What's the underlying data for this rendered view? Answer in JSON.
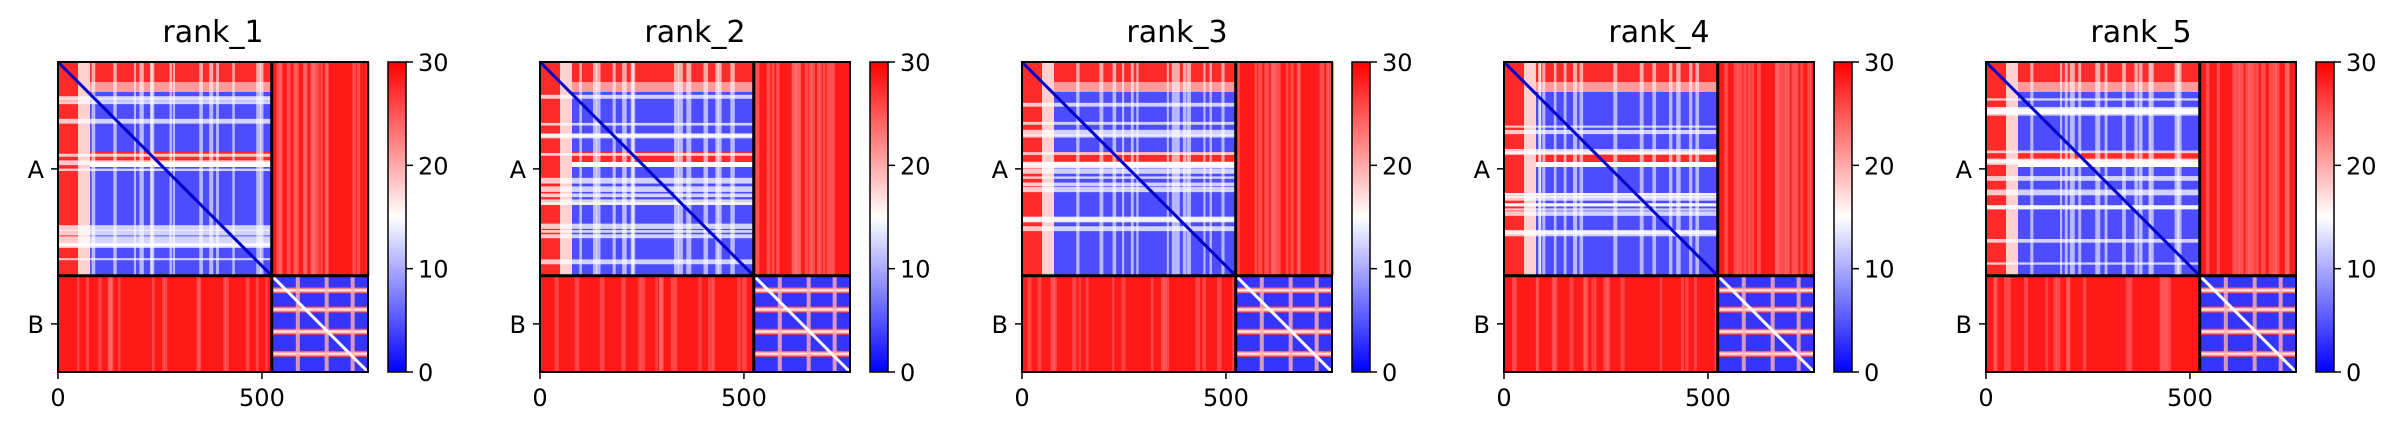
{
  "chart_data": [
    {
      "type": "heatmap",
      "title": "rank_1",
      "xlabel": "",
      "ylabel": "",
      "x_ticks": [
        "0",
        "500"
      ],
      "y_tick_labels": [
        "A",
        "B"
      ],
      "colorbar": {
        "ticks": [
          "0",
          "10",
          "20",
          "30"
        ],
        "range": [
          0,
          30
        ],
        "colors": [
          "#0000ff",
          "#ffffff",
          "#ff0000"
        ]
      },
      "chains": [
        {
          "name": "A",
          "length": 524
        },
        {
          "name": "B",
          "length": 236
        }
      ]
    },
    {
      "type": "heatmap",
      "title": "rank_2",
      "xlabel": "",
      "ylabel": "",
      "x_ticks": [
        "0",
        "500"
      ],
      "y_tick_labels": [
        "A",
        "B"
      ],
      "colorbar": {
        "ticks": [
          "0",
          "10",
          "20",
          "30"
        ],
        "range": [
          0,
          30
        ],
        "colors": [
          "#0000ff",
          "#ffffff",
          "#ff0000"
        ]
      },
      "chains": [
        {
          "name": "A",
          "length": 524
        },
        {
          "name": "B",
          "length": 236
        }
      ]
    },
    {
      "type": "heatmap",
      "title": "rank_3",
      "xlabel": "",
      "ylabel": "",
      "x_ticks": [
        "0",
        "500"
      ],
      "y_tick_labels": [
        "A",
        "B"
      ],
      "colorbar": {
        "ticks": [
          "0",
          "10",
          "20",
          "30"
        ],
        "range": [
          0,
          30
        ],
        "colors": [
          "#0000ff",
          "#ffffff",
          "#ff0000"
        ]
      },
      "chains": [
        {
          "name": "A",
          "length": 524
        },
        {
          "name": "B",
          "length": 236
        }
      ]
    },
    {
      "type": "heatmap",
      "title": "rank_4",
      "xlabel": "",
      "ylabel": "",
      "x_ticks": [
        "0",
        "500"
      ],
      "y_tick_labels": [
        "A",
        "B"
      ],
      "colorbar": {
        "ticks": [
          "0",
          "10",
          "20",
          "30"
        ],
        "range": [
          0,
          30
        ],
        "colors": [
          "#0000ff",
          "#ffffff",
          "#ff0000"
        ]
      },
      "chains": [
        {
          "name": "A",
          "length": 524
        },
        {
          "name": "B",
          "length": 236
        }
      ]
    },
    {
      "type": "heatmap",
      "title": "rank_5",
      "xlabel": "",
      "ylabel": "",
      "x_ticks": [
        "0",
        "500"
      ],
      "y_tick_labels": [
        "A",
        "B"
      ],
      "colorbar": {
        "ticks": [
          "0",
          "10",
          "20",
          "30"
        ],
        "range": [
          0,
          30
        ],
        "colors": [
          "#0000ff",
          "#ffffff",
          "#ff0000"
        ]
      },
      "chains": [
        {
          "name": "A",
          "length": 524
        },
        {
          "name": "B",
          "length": 236
        }
      ]
    }
  ]
}
